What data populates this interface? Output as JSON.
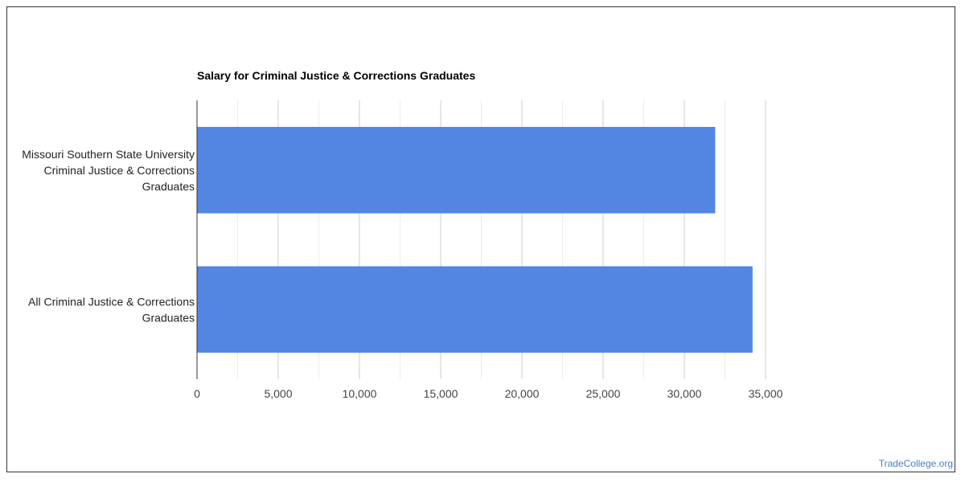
{
  "chart_data": {
    "type": "bar",
    "orientation": "horizontal",
    "title": "Salary for Criminal Justice & Corrections Graduates",
    "categories": [
      [
        "Missouri Southern State University",
        "Criminal Justice & Corrections",
        "Graduates"
      ],
      [
        "All Criminal Justice & Corrections",
        "Graduates"
      ]
    ],
    "values": [
      31900,
      34200
    ],
    "xlim": [
      0,
      35000
    ],
    "xticks": [
      0,
      5000,
      10000,
      15000,
      20000,
      25000,
      30000,
      35000
    ],
    "xtick_labels": [
      "0",
      "5,000",
      "10,000",
      "15,000",
      "20,000",
      "25,000",
      "30,000",
      "35,000"
    ],
    "minor_gridlines": true,
    "grid": true,
    "bar_color": "#5286e2",
    "legend": "none"
  },
  "watermark": "TradeCollege.org"
}
